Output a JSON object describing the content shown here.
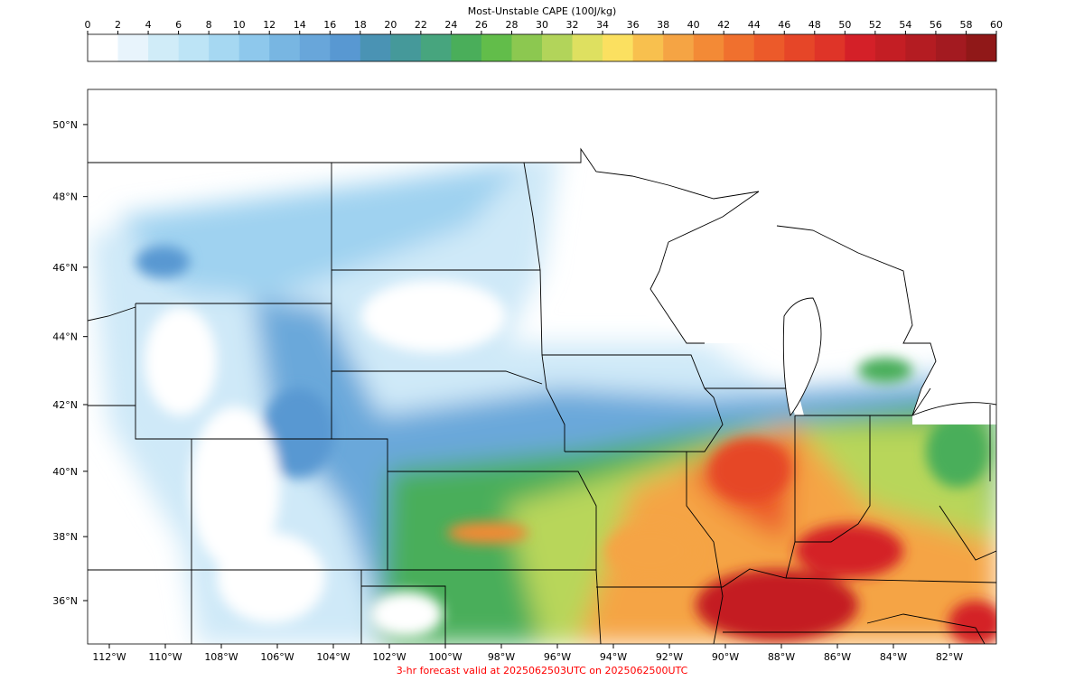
{
  "colorbar": {
    "title": "Most-Unstable CAPE (100J/kg)",
    "ticks": [
      0,
      2,
      4,
      6,
      8,
      10,
      12,
      14,
      16,
      18,
      20,
      22,
      24,
      26,
      28,
      30,
      32,
      34,
      36,
      38,
      40,
      42,
      44,
      46,
      48,
      50,
      52,
      54,
      56,
      58,
      60
    ],
    "colors": [
      "#ffffff",
      "#e8f4fc",
      "#d0ecf8",
      "#bde4f6",
      "#a6d8f2",
      "#8ec8ec",
      "#78b6e2",
      "#68a6da",
      "#5898d2",
      "#4a93b4",
      "#45999a",
      "#47a57e",
      "#4aae5a",
      "#62bd4a",
      "#8cc850",
      "#b2d45a",
      "#dee060",
      "#fbe060",
      "#f8c04e",
      "#f5a444",
      "#f38a36",
      "#f0702e",
      "#ec5a2a",
      "#e64628",
      "#df3428",
      "#d42028",
      "#c41e24",
      "#b41c22",
      "#a31a20",
      "#901818"
    ]
  },
  "map": {
    "lat_ticks": [
      {
        "value": 50,
        "label": "50°N"
      },
      {
        "value": 48,
        "label": "48°N"
      },
      {
        "value": 46,
        "label": "46°N"
      },
      {
        "value": 44,
        "label": "44°N"
      },
      {
        "value": 42,
        "label": "42°N"
      },
      {
        "value": 40,
        "label": "40°N"
      },
      {
        "value": 38,
        "label": "38°N"
      },
      {
        "value": 36,
        "label": "36°N"
      }
    ],
    "lon_ticks": [
      {
        "value": -112,
        "label": "112°W"
      },
      {
        "value": -110,
        "label": "110°W"
      },
      {
        "value": -108,
        "label": "108°W"
      },
      {
        "value": -106,
        "label": "106°W"
      },
      {
        "value": -104,
        "label": "104°W"
      },
      {
        "value": -102,
        "label": "102°W"
      },
      {
        "value": -100,
        "label": "100°W"
      },
      {
        "value": -98,
        "label": "98°W"
      },
      {
        "value": -96,
        "label": "96°W"
      },
      {
        "value": -94,
        "label": "94°W"
      },
      {
        "value": -92,
        "label": "92°W"
      },
      {
        "value": -90,
        "label": "90°W"
      },
      {
        "value": -88,
        "label": "88°W"
      },
      {
        "value": -86,
        "label": "86°W"
      },
      {
        "value": -84,
        "label": "84°W"
      },
      {
        "value": -82,
        "label": "82°W"
      }
    ]
  },
  "caption": "3-hr forecast valid at 2025062503UTC on 2025062500UTC"
}
